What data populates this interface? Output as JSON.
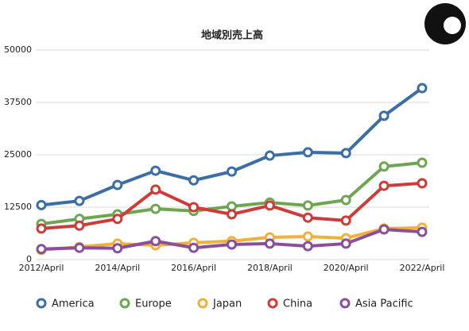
{
  "chart_data": {
    "type": "line",
    "title": "地域別売上高",
    "categories": [
      "2012/April",
      null,
      "2014/April",
      null,
      "2016/April",
      null,
      "2018/April",
      null,
      "2020/April",
      null,
      "2022/April"
    ],
    "series": [
      {
        "name": "America",
        "color": "#3b6ea5",
        "values": [
          13000,
          14000,
          17800,
          21200,
          18900,
          21000,
          24800,
          25600,
          25400,
          34300,
          40900
        ]
      },
      {
        "name": "Europe",
        "color": "#6ea553",
        "values": [
          8500,
          9700,
          10800,
          12100,
          11600,
          12700,
          13600,
          12900,
          14200,
          22200,
          23100
        ]
      },
      {
        "name": "Japan",
        "color": "#f0b03a",
        "values": [
          2300,
          3000,
          3800,
          3400,
          4000,
          4400,
          5300,
          5500,
          5100,
          7400,
          7600
        ]
      },
      {
        "name": "China",
        "color": "#cc3d3a",
        "values": [
          7400,
          8100,
          9700,
          16700,
          12500,
          10800,
          12900,
          10000,
          9300,
          17600,
          18200
        ]
      },
      {
        "name": "Asia Pacific",
        "color": "#8a4f9a",
        "values": [
          2500,
          2800,
          2700,
          4400,
          2800,
          3600,
          3800,
          3200,
          3800,
          7200,
          6600
        ]
      }
    ],
    "ylim": [
      0,
      50000
    ],
    "yticks": [
      0,
      12500,
      25000,
      37500,
      50000
    ],
    "grid": true
  }
}
